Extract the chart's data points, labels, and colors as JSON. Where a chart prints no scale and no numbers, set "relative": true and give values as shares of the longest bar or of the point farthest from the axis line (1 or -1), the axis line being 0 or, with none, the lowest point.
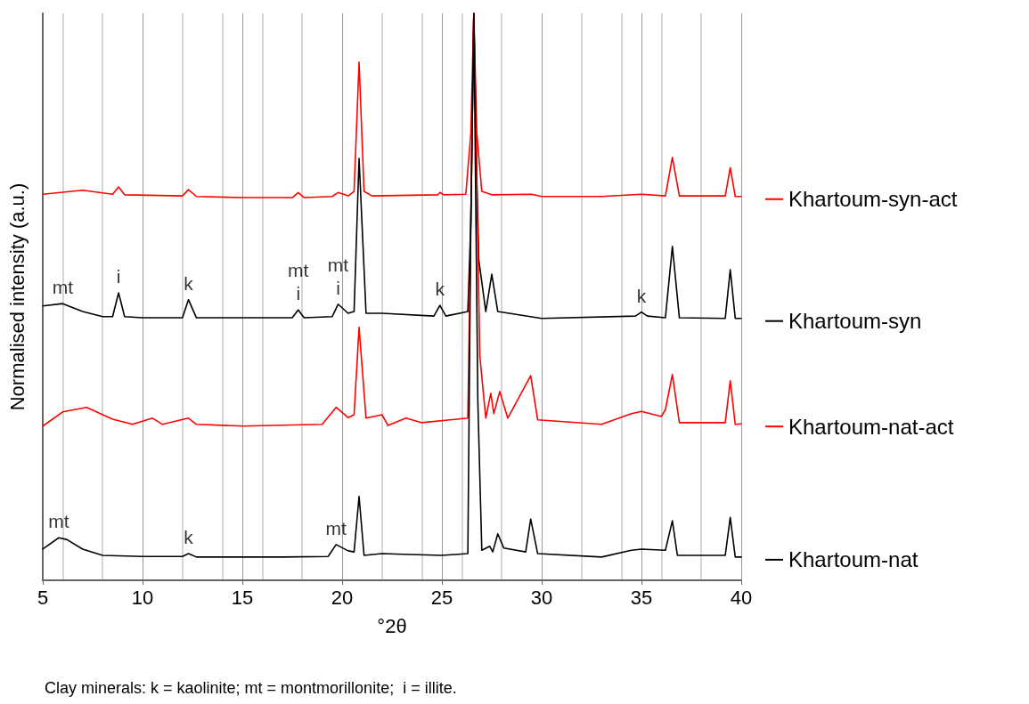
{
  "chart_data": {
    "type": "line",
    "relative": true,
    "xlabel": "°2θ",
    "ylabel": "Normalised intensity (a.u.)",
    "xlim": [
      5,
      40
    ],
    "xticks": [
      5,
      10,
      15,
      20,
      25,
      30,
      35,
      40
    ],
    "grid": "x",
    "legend": "right",
    "marker": "none",
    "line_style": "solid",
    "series": [
      {
        "name": "Khartoum-syn-act",
        "color": "#ff0000",
        "x": [
          5,
          7,
          8.5,
          8.8,
          9.1,
          12,
          12.3,
          12.7,
          15,
          17.5,
          17.8,
          18.1,
          19.5,
          19.8,
          20.3,
          20.6,
          20.85,
          21.1,
          21.5,
          24.8,
          24.9,
          25.1,
          26.2,
          26.45,
          26.6,
          26.75,
          27.0,
          27.5,
          29.5,
          30,
          33,
          35,
          36.2,
          36.55,
          36.9,
          39.2,
          39.45,
          39.7,
          40
        ],
        "values": [
          0.681,
          0.688,
          0.681,
          0.694,
          0.68,
          0.678,
          0.689,
          0.677,
          0.675,
          0.675,
          0.684,
          0.675,
          0.677,
          0.684,
          0.678,
          0.686,
          0.914,
          0.686,
          0.678,
          0.68,
          0.684,
          0.68,
          0.681,
          0.788,
          1,
          0.788,
          0.686,
          0.68,
          0.681,
          0.677,
          0.677,
          0.681,
          0.678,
          0.746,
          0.678,
          0.678,
          0.728,
          0.677,
          0.677
        ]
      },
      {
        "name": "Khartoum-syn",
        "color": "#000000",
        "x": [
          5,
          6,
          7,
          8,
          8.5,
          8.8,
          9.1,
          10,
          12,
          12.3,
          12.7,
          15,
          17.5,
          17.8,
          18.1,
          19.5,
          19.8,
          20.3,
          20.6,
          20.85,
          21.2,
          22,
          24.6,
          24.9,
          25.2,
          26.3,
          26.45,
          26.6,
          26.75,
          26.85,
          27.2,
          27.5,
          27.8,
          30,
          34.7,
          35,
          35.3,
          36.2,
          36.55,
          36.9,
          39.2,
          39.45,
          39.7,
          40
        ],
        "values": [
          0.484,
          0.488,
          0.474,
          0.465,
          0.465,
          0.507,
          0.465,
          0.463,
          0.463,
          0.495,
          0.463,
          0.463,
          0.463,
          0.477,
          0.463,
          0.465,
          0.487,
          0.471,
          0.474,
          0.744,
          0.471,
          0.471,
          0.466,
          0.485,
          0.466,
          0.474,
          0.631,
          1,
          0.71,
          0.565,
          0.474,
          0.54,
          0.474,
          0.462,
          0.466,
          0.473,
          0.466,
          0.463,
          0.589,
          0.463,
          0.462,
          0.548,
          0.462,
          0.462
        ]
      },
      {
        "name": "Khartoum-nat-act",
        "color": "#ff0000",
        "x": [
          5,
          6,
          7.2,
          8.5,
          9.5,
          10.5,
          11,
          12.3,
          12.7,
          15,
          19,
          19.7,
          20.3,
          20.6,
          20.85,
          21.2,
          22,
          22.3,
          23.2,
          24,
          26.3,
          26.45,
          26.6,
          26.9,
          27.2,
          27.45,
          27.6,
          27.9,
          28.3,
          29.45,
          29.8,
          33,
          34.5,
          35,
          36,
          36.2,
          36.55,
          36.9,
          39.2,
          39.45,
          39.7,
          40
        ],
        "values": [
          0.272,
          0.297,
          0.305,
          0.284,
          0.275,
          0.286,
          0.275,
          0.286,
          0.275,
          0.272,
          0.275,
          0.305,
          0.287,
          0.292,
          0.446,
          0.286,
          0.292,
          0.273,
          0.286,
          0.278,
          0.286,
          0.631,
          1,
          0.396,
          0.286,
          0.33,
          0.294,
          0.333,
          0.286,
          0.361,
          0.283,
          0.275,
          0.294,
          0.298,
          0.289,
          0.301,
          0.363,
          0.278,
          0.278,
          0.352,
          0.275,
          0.276
        ]
      },
      {
        "name": "Khartoum-nat",
        "color": "#000000",
        "x": [
          5,
          5.8,
          6.2,
          7,
          8,
          10,
          12,
          12.3,
          12.7,
          15,
          17,
          19.3,
          19.7,
          20.3,
          20.6,
          20.85,
          21.1,
          22,
          23,
          25,
          26.3,
          26.45,
          26.6,
          26.8,
          27.0,
          27.4,
          27.55,
          27.8,
          28.1,
          29.2,
          29.45,
          29.8,
          33,
          34.5,
          35,
          36.2,
          36.55,
          36.8,
          39.2,
          39.45,
          39.7,
          40
        ],
        "values": [
          0.055,
          0.075,
          0.072,
          0.055,
          0.044,
          0.042,
          0.042,
          0.047,
          0.041,
          0.041,
          0.041,
          0.042,
          0.063,
          0.052,
          0.05,
          0.148,
          0.044,
          0.047,
          0.046,
          0.044,
          0.047,
          0.631,
          1,
          0.317,
          0.053,
          0.06,
          0.05,
          0.082,
          0.057,
          0.05,
          0.108,
          0.047,
          0.041,
          0.053,
          0.055,
          0.053,
          0.105,
          0.044,
          0.044,
          0.111,
          0.041,
          0.041
        ]
      }
    ],
    "annotations": [
      {
        "text": "mt",
        "x": 6,
        "y": 0.488
      },
      {
        "text": "i",
        "x": 8.8,
        "y": 0.507
      },
      {
        "text": "k",
        "x": 12.3,
        "y": 0.495
      },
      {
        "text": "i",
        "x": 17.8,
        "y": 0.477
      },
      {
        "text": "mt",
        "x": 17.8,
        "y": 0.477
      },
      {
        "text": "i",
        "x": 19.8,
        "y": 0.487
      },
      {
        "text": "mt",
        "x": 19.8,
        "y": 0.487
      },
      {
        "text": "k",
        "x": 24.9,
        "y": 0.485
      },
      {
        "text": "k",
        "x": 35,
        "y": 0.473
      },
      {
        "text": "mt",
        "x": 5.8,
        "y": 0.075
      },
      {
        "text": "k",
        "x": 12.3,
        "y": 0.047
      },
      {
        "text": "mt",
        "x": 19.7,
        "y": 0.063
      },
      "Clay minerals: k = kaolinite; mt = montmorillonite;  i = illite."
    ]
  }
}
